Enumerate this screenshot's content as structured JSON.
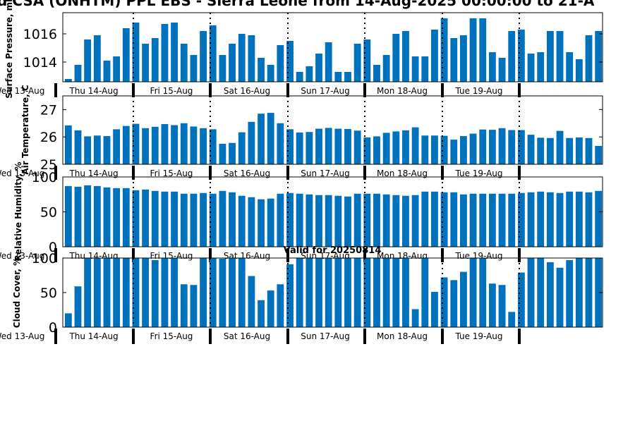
{
  "header": {
    "title": "d CSA (ONHTM) PPL EBS  - Sierra Leone from 14-Aug-2025 00:00:00 to 21-A",
    "valid_label": "Valid for 20250814"
  },
  "colors": {
    "bar": "#0072bd",
    "axis": "#000000",
    "background": "#ffffff"
  },
  "chart_data": [
    {
      "type": "bar",
      "ylabel": "Surface Pressure, mb",
      "ylim": [
        1012.6,
        1017.5
      ],
      "yticks": [
        1014,
        1016
      ],
      "grid": false,
      "day_labels": [
        "Wed 13-Aug",
        "Thu 14-Aug",
        "Fri 15-Aug",
        "Sat 16-Aug",
        "Sun 17-Aug",
        "Mon 18-Aug",
        "Tue 19-Aug"
      ],
      "values": [
        1012.8,
        1013.8,
        1015.6,
        1015.9,
        1014.1,
        1014.4,
        1016.4,
        1016.8,
        1015.3,
        1015.7,
        1016.7,
        1016.8,
        1015.3,
        1014.5,
        1016.2,
        1016.6,
        1014.5,
        1015.3,
        1016.0,
        1015.9,
        1014.3,
        1013.8,
        1015.2,
        1015.5,
        1013.3,
        1013.7,
        1014.6,
        1015.4,
        1013.3,
        1013.3,
        1015.3,
        1015.6,
        1013.8,
        1014.5,
        1016.0,
        1016.2,
        1014.4,
        1014.4,
        1016.3,
        1017.1,
        1015.7,
        1015.9,
        1017.1,
        1017.1,
        1014.7,
        1014.3,
        1016.2,
        1016.3,
        1014.6,
        1014.7,
        1016.2,
        1016.2,
        1014.7,
        1014.2,
        1015.9,
        1016.2
      ]
    },
    {
      "type": "bar",
      "ylabel": "Air Temperature, C",
      "ylim": [
        25,
        27.5
      ],
      "yticks": [
        25,
        26,
        27
      ],
      "grid": false,
      "day_labels": [
        "Wed 13-Aug",
        "Thu 14-Aug",
        "Fri 15-Aug",
        "Sat 16-Aug",
        "Sun 17-Aug",
        "Mon 18-Aug",
        "Tue 19-Aug"
      ],
      "values": [
        26.42,
        26.24,
        26.02,
        26.05,
        26.03,
        26.28,
        26.4,
        26.48,
        26.32,
        26.37,
        26.47,
        26.43,
        26.5,
        26.38,
        26.32,
        26.28,
        25.75,
        25.78,
        26.17,
        26.55,
        26.85,
        26.88,
        26.5,
        26.28,
        26.16,
        26.18,
        26.3,
        26.33,
        26.3,
        26.29,
        26.23,
        25.98,
        26.02,
        26.15,
        26.2,
        26.24,
        26.35,
        26.05,
        26.05,
        26.04,
        25.9,
        26.03,
        26.12,
        26.27,
        26.26,
        26.32,
        26.25,
        26.25,
        26.08,
        25.97,
        25.96,
        26.22,
        25.96,
        25.98,
        25.96,
        25.67
      ]
    },
    {
      "type": "bar",
      "ylabel": "Relative Humidity, %",
      "ylim": [
        0,
        100
      ],
      "yticks": [
        0,
        50,
        100
      ],
      "grid": false,
      "day_labels": [
        "Wed 13-Aug",
        "Thu 14-Aug",
        "Fri 15-Aug",
        "Sat 16-Aug",
        "Sun 17-Aug",
        "Mon 18-Aug",
        "Tue 19-Aug"
      ],
      "values": [
        87,
        86,
        88,
        87,
        85,
        84,
        84,
        81,
        82,
        80,
        79,
        79,
        76,
        76,
        77,
        76,
        80,
        78,
        73,
        71,
        68,
        69,
        76,
        77,
        76,
        75,
        74,
        74,
        73,
        72,
        76,
        76,
        76,
        75,
        74,
        73,
        74,
        79,
        79,
        78,
        78,
        75,
        76,
        76,
        76,
        76,
        76,
        77,
        78,
        79,
        78,
        77,
        79,
        79,
        78,
        80
      ]
    },
    {
      "type": "bar",
      "ylabel": "Cloud Cover, %",
      "ylim": [
        0,
        100
      ],
      "yticks": [
        0,
        50,
        100
      ],
      "grid": false,
      "day_labels": [
        "Wed 13-Aug",
        "Thu 14-Aug",
        "Fri 15-Aug",
        "Sat 16-Aug",
        "Sun 17-Aug",
        "Mon 18-Aug",
        "Tue 19-Aug"
      ],
      "values": [
        20,
        59,
        100,
        100,
        100,
        100,
        100,
        100,
        100,
        97,
        100,
        100,
        62,
        61,
        100,
        100,
        99,
        100,
        100,
        74,
        39,
        53,
        62,
        91,
        100,
        100,
        100,
        100,
        100,
        100,
        100,
        100,
        100,
        100,
        100,
        100,
        26,
        100,
        51,
        72,
        68,
        80,
        100,
        100,
        63,
        61,
        22,
        79,
        100,
        100,
        94,
        86,
        97,
        100,
        100,
        100
      ]
    }
  ]
}
